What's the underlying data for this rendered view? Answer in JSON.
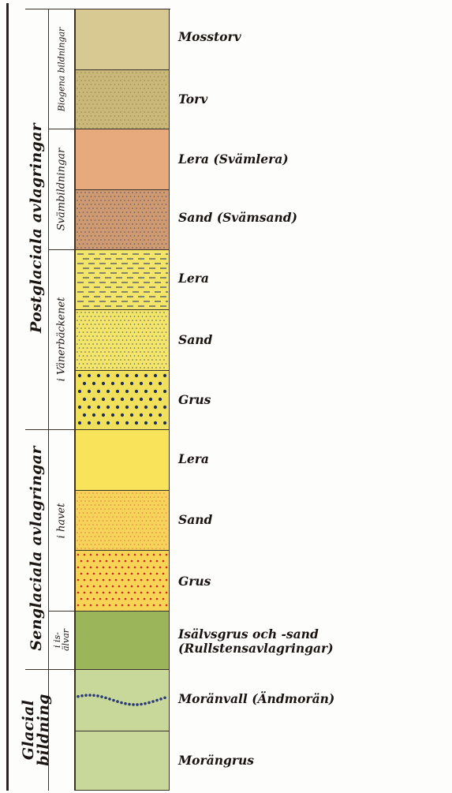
{
  "groups": [
    {
      "label": "Postglaciala avlagringar",
      "subgroups": [
        {
          "label": "Biogena bildningar"
        },
        {
          "label": "Svämbildningar"
        },
        {
          "label": "i Vänerbäckenet"
        }
      ]
    },
    {
      "label": "Senglaciala avlagringar",
      "subgroups": [
        {
          "label": "i havet"
        },
        {
          "label": "i is-\nälvar"
        }
      ]
    },
    {
      "label": "Glacial bildning",
      "label_lines": [
        "Glacial",
        "bildning"
      ]
    }
  ],
  "layers": [
    {
      "label": "Mosstorv",
      "color": "#d8c993",
      "pattern": "none"
    },
    {
      "label": "Torv",
      "color": "#c9b87a",
      "pattern": "fine-dots",
      "dot_color": "#8a7a3e"
    },
    {
      "label": "Lera (Svämlera)",
      "color": "#e6aa7c",
      "pattern": "none"
    },
    {
      "label": "Sand (Svämsand)",
      "color": "#cf9a70",
      "pattern": "fine-dots",
      "dot_color": "#3a4470"
    },
    {
      "label": "Lera",
      "color": "#f3e56a",
      "pattern": "dashes",
      "dot_color": "#2c3a66"
    },
    {
      "label": "Sand",
      "color": "#f3e56a",
      "pattern": "fine-dots",
      "dot_color": "#2c3a66"
    },
    {
      "label": "Grus",
      "color": "#f0e05c",
      "pattern": "big-dots",
      "dot_color": "#1f2c55"
    },
    {
      "label": "Lera",
      "color": "#f8e35a",
      "pattern": "none"
    },
    {
      "label": "Sand",
      "color": "#f6d35a",
      "pattern": "fine-dots",
      "dot_color": "#e0663a"
    },
    {
      "label": "Grus",
      "color": "#f5d456",
      "pattern": "red-dots",
      "dot_color": "#d8281e"
    },
    {
      "label": "Isälvsgrus och -sand\n(Rullstensavlagringar)",
      "color": "#9bb65a",
      "pattern": "none"
    },
    {
      "label": "Moränvall (Ändmorän)",
      "color": "#c8d89a",
      "pattern": "wave-dots",
      "dot_color": "#2a3a78"
    },
    {
      "label": "Morängrus",
      "color": "#c8d89a",
      "pattern": "none"
    }
  ]
}
